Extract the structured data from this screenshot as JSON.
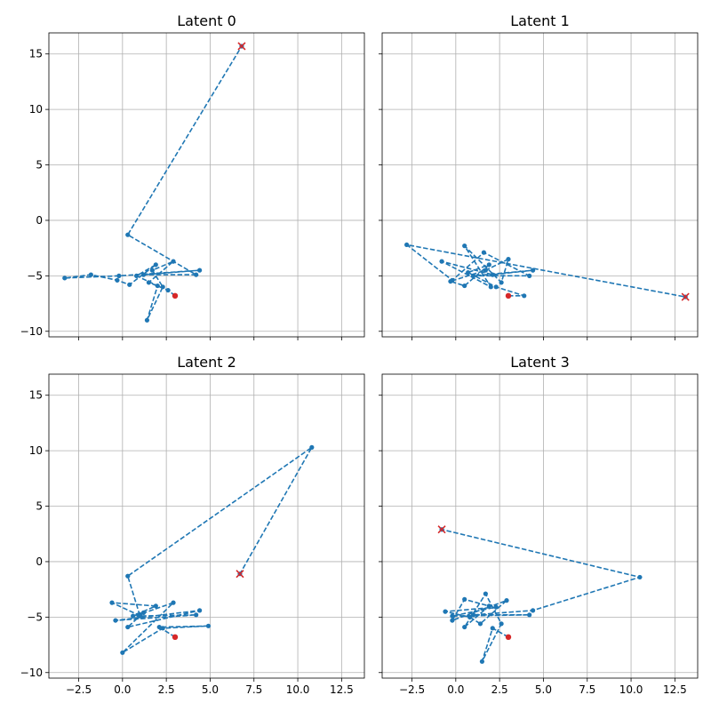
{
  "chart_data": [
    {
      "type": "line",
      "title": "Latent 0",
      "xlim": [
        -4.2,
        13.8
      ],
      "ylim": [
        -10.5,
        16.9
      ],
      "grid": true,
      "line_style": "dashed",
      "marker": "dot",
      "color": "#1f77b4",
      "points": [
        [
          3.0,
          -6.8
        ],
        [
          2.6,
          -6.3
        ],
        [
          1.5,
          -5.6
        ],
        [
          2.9,
          -3.7
        ],
        [
          1.7,
          -4.5
        ],
        [
          2.3,
          -6.0
        ],
        [
          1.4,
          -9.0
        ],
        [
          2.0,
          -5.9
        ],
        [
          0.8,
          -5.0
        ],
        [
          1.9,
          -4.0
        ],
        [
          0.4,
          -5.8
        ],
        [
          -0.3,
          -5.4
        ],
        [
          -1.8,
          -4.9
        ],
        [
          -3.3,
          -5.2
        ],
        [
          -0.2,
          -5.0
        ],
        [
          4.4,
          -4.5
        ],
        [
          1.2,
          -4.9
        ],
        [
          4.2,
          -4.9
        ],
        [
          0.3,
          -1.3
        ],
        [
          6.8,
          15.7
        ]
      ],
      "start": [
        3.0,
        -6.8
      ],
      "end": [
        6.8,
        15.7
      ]
    },
    {
      "type": "line",
      "title": "Latent 1",
      "xlim": [
        -4.2,
        13.8
      ],
      "ylim": [
        -10.5,
        16.9
      ],
      "grid": true,
      "line_style": "dashed",
      "marker": "dot",
      "color": "#1f77b4",
      "points": [
        [
          3.0,
          -6.8
        ],
        [
          3.9,
          -6.8
        ],
        [
          2.3,
          -6.0
        ],
        [
          0.7,
          -4.7
        ],
        [
          1.9,
          -4.0
        ],
        [
          0.5,
          -5.9
        ],
        [
          -0.3,
          -5.5
        ],
        [
          1.7,
          -4.5
        ],
        [
          3.0,
          -3.5
        ],
        [
          2.6,
          -5.6
        ],
        [
          0.5,
          -2.3
        ],
        [
          2.0,
          -6.0
        ],
        [
          -0.8,
          -3.7
        ],
        [
          2.1,
          -4.9
        ],
        [
          4.4,
          -4.5
        ],
        [
          1.0,
          -5.0
        ],
        [
          4.2,
          -5.0
        ],
        [
          1.6,
          -2.9
        ],
        [
          -0.2,
          -5.4
        ],
        [
          -2.8,
          -2.2
        ],
        [
          13.1,
          -6.9
        ]
      ],
      "start": [
        3.0,
        -6.8
      ],
      "end": [
        13.1,
        -6.9
      ]
    },
    {
      "type": "line",
      "title": "Latent 2",
      "xlim": [
        -4.2,
        13.8
      ],
      "ylim": [
        -10.5,
        16.9
      ],
      "grid": true,
      "line_style": "dashed",
      "marker": "dot",
      "color": "#1f77b4",
      "points": [
        [
          3.0,
          -6.8
        ],
        [
          2.1,
          -5.9
        ],
        [
          4.9,
          -5.8
        ],
        [
          2.3,
          -6.0
        ],
        [
          0.0,
          -8.2
        ],
        [
          2.9,
          -3.7
        ],
        [
          0.9,
          -4.8
        ],
        [
          -0.6,
          -3.7
        ],
        [
          1.9,
          -4.0
        ],
        [
          0.6,
          -4.9
        ],
        [
          1.2,
          -4.6
        ],
        [
          0.3,
          -5.9
        ],
        [
          4.4,
          -4.4
        ],
        [
          -0.4,
          -5.3
        ],
        [
          4.2,
          -4.8
        ],
        [
          1.0,
          -4.9
        ],
        [
          0.3,
          -1.3
        ],
        [
          10.8,
          10.3
        ],
        [
          6.7,
          -1.1
        ]
      ],
      "start": [
        3.0,
        -6.8
      ],
      "end": [
        6.7,
        -1.1
      ]
    },
    {
      "type": "line",
      "title": "Latent 3",
      "xlim": [
        -4.2,
        13.8
      ],
      "ylim": [
        -10.5,
        16.9
      ],
      "grid": true,
      "line_style": "dashed",
      "marker": "dot",
      "color": "#1f77b4",
      "points": [
        [
          3.0,
          -6.8
        ],
        [
          2.1,
          -6.0
        ],
        [
          1.5,
          -9.0
        ],
        [
          2.6,
          -5.6
        ],
        [
          1.7,
          -2.9
        ],
        [
          0.5,
          -5.9
        ],
        [
          1.9,
          -4.0
        ],
        [
          0.5,
          -3.4
        ],
        [
          -0.2,
          -5.3
        ],
        [
          2.9,
          -3.5
        ],
        [
          1.4,
          -5.6
        ],
        [
          0.8,
          -5.0
        ],
        [
          -0.6,
          -4.5
        ],
        [
          2.3,
          -4.1
        ],
        [
          -0.2,
          -4.9
        ],
        [
          4.2,
          -4.8
        ],
        [
          1.0,
          -4.8
        ],
        [
          4.4,
          -4.4
        ],
        [
          10.5,
          -1.4
        ],
        [
          -0.8,
          2.9
        ]
      ],
      "start": [
        3.0,
        -6.8
      ],
      "end": [
        -0.8,
        2.9
      ]
    }
  ],
  "axes": {
    "x_ticks": [
      -2.5,
      0.0,
      2.5,
      5.0,
      7.5,
      10.0,
      12.5
    ],
    "x_tick_labels": [
      "−2.5",
      "0.0",
      "2.5",
      "5.0",
      "7.5",
      "10.0",
      "12.5"
    ],
    "y_ticks": [
      -10,
      -5,
      0,
      5,
      10,
      15
    ],
    "y_tick_labels": [
      "−10",
      "−5",
      "0",
      "5",
      "10",
      "15"
    ],
    "x_labels_on_bottom_row_only": true,
    "y_labels_on_left_column_only": true
  },
  "colors": {
    "series": "#1f77b4",
    "start_marker": "#d62728",
    "end_marker": "#d62728",
    "grid": "#b0b0b0"
  }
}
